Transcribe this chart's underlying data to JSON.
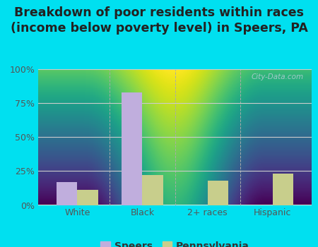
{
  "title": "Breakdown of poor residents within races\n(income below poverty level) in Speers, PA",
  "categories": [
    "White",
    "Black",
    "2+ races",
    "Hispanic"
  ],
  "speers": [
    17,
    83,
    0,
    0
  ],
  "pennsylvania": [
    11,
    22,
    18,
    23
  ],
  "speers_color": "#c0aedd",
  "pennsylvania_color": "#c8ce8c",
  "bg_outer": "#00e0f0",
  "bg_inner_top": "#f0f8ee",
  "bg_inner_bottom": "#d8edd8",
  "ylim": [
    0,
    100
  ],
  "yticks": [
    0,
    25,
    50,
    75,
    100
  ],
  "ytick_labels": [
    "0%",
    "25%",
    "50%",
    "75%",
    "100%"
  ],
  "bar_width": 0.32,
  "title_fontsize": 12.5,
  "legend_fontsize": 10,
  "tick_fontsize": 9,
  "watermark": "City-Data.com"
}
